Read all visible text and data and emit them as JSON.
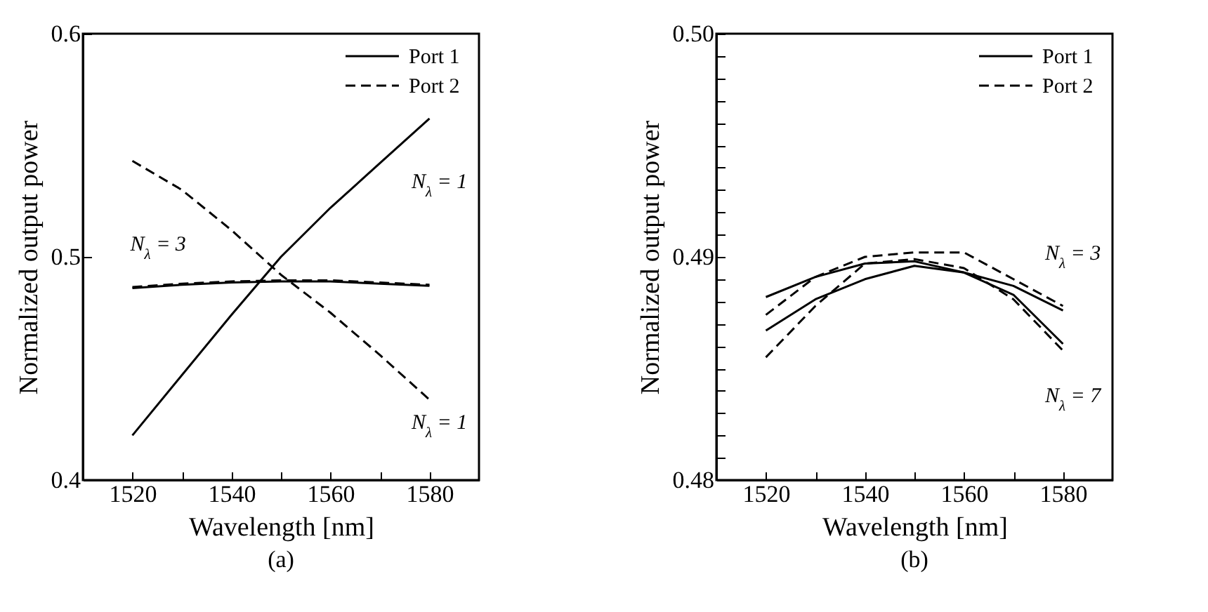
{
  "chart_data": [
    {
      "type": "line",
      "title": "(a)",
      "xlabel": "Wavelength [nm]",
      "ylabel": "Normalized output power",
      "x": [
        1520,
        1530,
        1540,
        1550,
        1560,
        1570,
        1580
      ],
      "xlim": [
        1510,
        1590
      ],
      "xticks": [
        1520,
        {
          "value": 1530,
          "label": null
        },
        1540,
        {
          "value": 1550,
          "label": null
        },
        1560,
        {
          "value": 1570,
          "label": null
        },
        1580
      ],
      "ylim": [
        0.4,
        0.6
      ],
      "yticks": [
        0.4,
        0.5,
        0.6
      ],
      "legend": "top right",
      "grid": false,
      "marker": "none",
      "series": [
        {
          "name": "Port 1",
          "color": "#000000",
          "line_style": "solid",
          "values": [
            0.42,
            0.447,
            0.474,
            0.5,
            0.522,
            0.542,
            0.562
          ]
        },
        {
          "name": "Port 2",
          "color": "#000000",
          "line_style": "dashed",
          "values": [
            0.543,
            0.53,
            0.512,
            0.492,
            0.475,
            0.456,
            0.436
          ]
        },
        {
          "name": "Port 1",
          "color": "#000000",
          "line_style": "solid",
          "values": [
            0.486,
            0.4875,
            0.4885,
            0.489,
            0.489,
            0.488,
            0.487
          ]
        },
        {
          "name": "Port 2",
          "color": "#000000",
          "line_style": "dashed",
          "values": [
            0.4865,
            0.488,
            0.489,
            0.4895,
            0.4895,
            0.4885,
            0.4875
          ]
        }
      ],
      "annotations": [
        "N$_{λ}$ = 1",
        "N$_{λ}$ = 1",
        "N$_{λ}$ = 3"
      ]
    },
    {
      "type": "line",
      "title": "(b)",
      "xlabel": "Wavelength [nm]",
      "ylabel": "Normalized output power",
      "x": [
        1520,
        1530,
        1540,
        1550,
        1560,
        1570,
        1580
      ],
      "xlim": [
        1510,
        1590
      ],
      "xticks": [
        1520,
        {
          "value": 1530,
          "label": null
        },
        1540,
        {
          "value": 1550,
          "label": null
        },
        1560,
        {
          "value": 1570,
          "label": null
        },
        1580
      ],
      "ylim": [
        0.48,
        0.5
      ],
      "yticks": [
        0.48,
        {
          "value": 0.481,
          "label": null
        },
        {
          "value": 0.482,
          "label": null
        },
        {
          "value": 0.483,
          "label": null
        },
        {
          "value": 0.484,
          "label": null
        },
        {
          "value": 0.485,
          "label": null
        },
        {
          "value": 0.486,
          "label": null
        },
        {
          "value": 0.487,
          "label": null
        },
        {
          "value": 0.488,
          "label": null
        },
        {
          "value": 0.489,
          "label": null
        },
        0.49,
        {
          "value": 0.491,
          "label": null
        },
        {
          "value": 0.492,
          "label": null
        },
        {
          "value": 0.493,
          "label": null
        },
        {
          "value": 0.494,
          "label": null
        },
        {
          "value": 0.495,
          "label": null
        },
        {
          "value": 0.496,
          "label": null
        },
        {
          "value": 0.497,
          "label": null
        },
        {
          "value": 0.498,
          "label": null
        },
        {
          "value": 0.499,
          "label": null
        },
        {
          "value": 0.5,
          "label": "0.50"
        }
      ],
      "legend": "top right",
      "grid": false,
      "marker": "none",
      "series": [
        {
          "name": "Port 1",
          "color": "#000000",
          "line_style": "solid",
          "values": [
            0.4882,
            0.4891,
            0.4897,
            0.4898,
            0.4893,
            0.4887,
            0.4876
          ]
        },
        {
          "name": "Port 2",
          "color": "#000000",
          "line_style": "dashed",
          "values": [
            0.4874,
            0.4891,
            0.49,
            0.4902,
            0.4902,
            0.489,
            0.4878
          ]
        },
        {
          "name": "Port 1",
          "color": "#000000",
          "line_style": "solid",
          "values": [
            0.4867,
            0.4881,
            0.489,
            0.4896,
            0.4893,
            0.4883,
            0.4861
          ]
        },
        {
          "name": "Port 2",
          "color": "#000000",
          "line_style": "dashed",
          "values": [
            0.4855,
            0.4878,
            0.4897,
            0.4899,
            0.4895,
            0.4881,
            0.4858
          ]
        }
      ],
      "annotations": [
        "N$_{λ}$ = 3",
        "N$_{λ}$ = 7"
      ]
    }
  ]
}
